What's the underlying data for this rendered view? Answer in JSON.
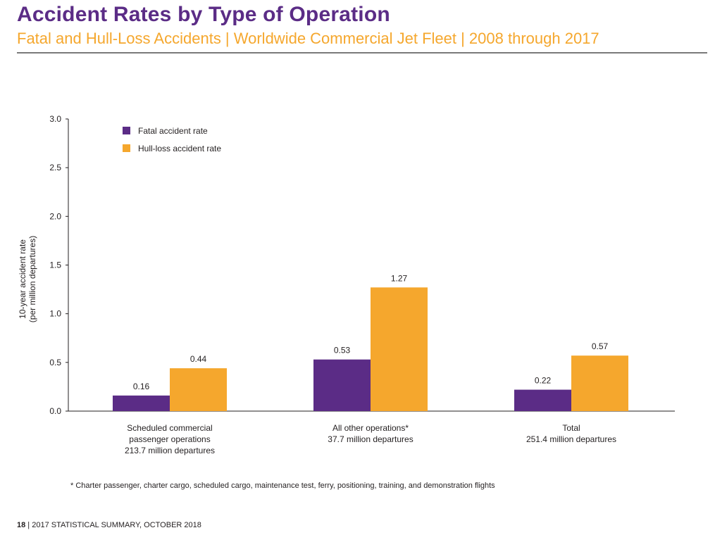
{
  "header": {
    "title": "Accident Rates by Type of Operation",
    "subtitle": "Fatal and Hull-Loss Accidents | Worldwide Commercial Jet Fleet | 2008 through 2017"
  },
  "chart_data": {
    "type": "bar",
    "ylabel_line1": "10-year accident rate",
    "ylabel_line2": "(per million departures)",
    "ylim": [
      0,
      3.0
    ],
    "yticks": [
      "0.0",
      "0.5",
      "1.0",
      "1.5",
      "2.0",
      "2.5",
      "3.0"
    ],
    "ytick_values": [
      0,
      0.5,
      1.0,
      1.5,
      2.0,
      2.5,
      3.0
    ],
    "grid": false,
    "legend_position": "top-left",
    "categories": [
      {
        "lines": [
          "Scheduled commercial",
          "passenger operations",
          "213.7 million departures"
        ]
      },
      {
        "lines": [
          "All other operations*",
          "37.7 million departures"
        ]
      },
      {
        "lines": [
          "Total",
          "251.4 million departures"
        ]
      }
    ],
    "series": [
      {
        "name": "Fatal accident rate",
        "color": "#5b2c86",
        "values": [
          0.16,
          0.53,
          0.22
        ],
        "labels": [
          "0.16",
          "0.53",
          "0.22"
        ]
      },
      {
        "name": "Hull-loss accident rate",
        "color": "#f5a72d",
        "values": [
          0.44,
          1.27,
          0.57
        ],
        "labels": [
          "0.44",
          "1.27",
          "0.57"
        ]
      }
    ]
  },
  "footnote": "* Charter passenger, charter cargo, scheduled cargo, maintenance test, ferry, positioning, training, and demonstration flights",
  "footer": {
    "page_number": "18",
    "text": " | 2017 STATISTICAL SUMMARY, OCTOBER 2018"
  }
}
